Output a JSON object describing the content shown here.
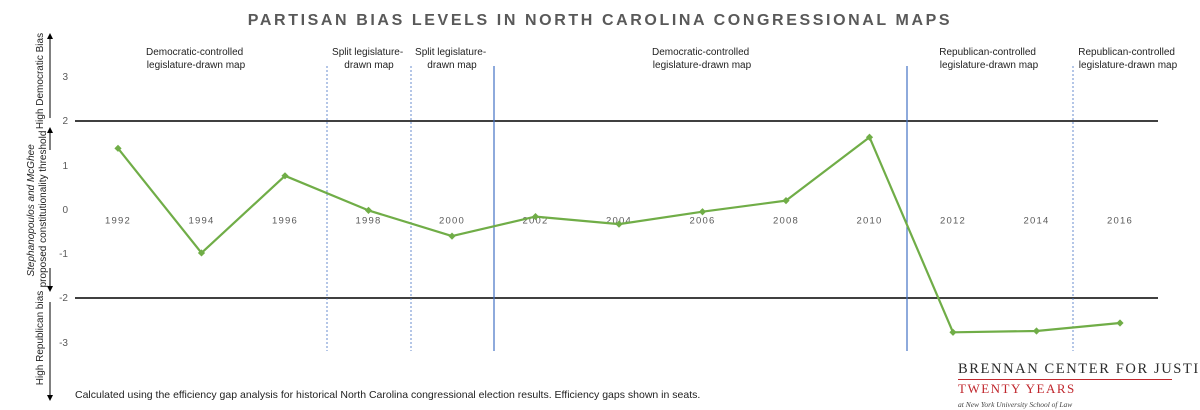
{
  "chart_data": {
    "type": "line",
    "title": "PARTISAN BIAS LEVELS IN NORTH CAROLINA CONGRESSIONAL MAPS",
    "categories": [
      "1992",
      "1994",
      "1996",
      "1998",
      "2000",
      "2002",
      "2004",
      "2006",
      "2008",
      "2010",
      "2012",
      "2014",
      "2016"
    ],
    "series": [
      {
        "values": [
          1.38,
          -0.98,
          0.76,
          -0.02,
          -0.6,
          -0.16,
          -0.33,
          -0.05,
          0.2,
          1.63,
          -2.77,
          -2.74,
          -2.56
        ]
      }
    ],
    "ylim": [
      -3,
      3
    ],
    "yticks": [
      "3",
      "2",
      "1",
      "0",
      "-1",
      "-2",
      "-3"
    ],
    "thresholds": [
      2,
      -2
    ],
    "periods": [
      {
        "label_line1": "Democratic-controlled",
        "label_line2": "legislature-drawn map"
      },
      {
        "label_line1": "Split legislature-",
        "label_line2": "drawn map"
      },
      {
        "label_line1": "Split legislature-",
        "label_line2": "drawn map"
      },
      {
        "label_line1": "Democratic-controlled",
        "label_line2": "legislature-drawn map"
      },
      {
        "label_line1": "Republican-controlled",
        "label_line2": "legislature-drawn map"
      },
      {
        "label_line1": "Republican-controlled",
        "label_line2": "legislature-drawn map"
      }
    ],
    "side_labels": {
      "top": "High Democratic Bias",
      "middle_line1": "Stephanopoulos and McGhee",
      "middle_line2": "proposed constitutionality threshold",
      "bottom": "High Republican bias"
    },
    "grid": false,
    "colors": {
      "line": "#70ad47",
      "threshold": "#000000",
      "divider": "#4472c4"
    }
  },
  "footnote": "Calculated using the efficiency gap analysis for historical North Carolina congressional election results. Efficiency gaps shown in seats.",
  "logo": {
    "line1": "BRENNAN CENTER FOR JUSTICE",
    "line2": "TWENTY YEARS",
    "line3": "at New York University School of Law"
  }
}
